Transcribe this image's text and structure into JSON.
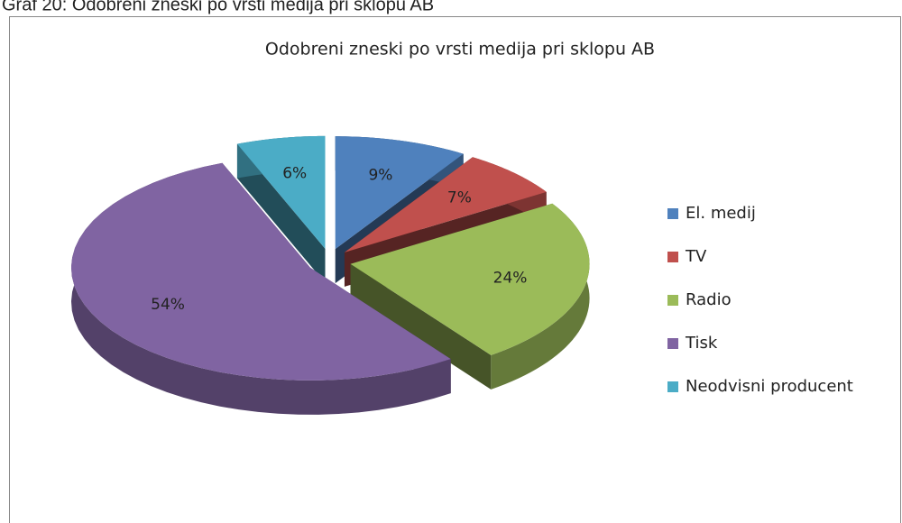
{
  "caption": "Graf 20: Odobreni zneski po vrsti medija pri sklopu AB",
  "chart_data": {
    "type": "pie3d",
    "title": "Odobreni zneski po vrsti medija pri sklopu AB",
    "categories": [
      "El. medij",
      "TV",
      "Radio",
      "Tisk",
      "Neodvisni producent"
    ],
    "values": [
      9,
      7,
      24,
      54,
      6
    ],
    "value_labels": [
      "9%",
      "7%",
      "24%",
      "54%",
      "6%"
    ],
    "colors": [
      "#4f81bd",
      "#c0504d",
      "#9bbb59",
      "#8064a2",
      "#4bacc6"
    ],
    "legend": "right"
  }
}
